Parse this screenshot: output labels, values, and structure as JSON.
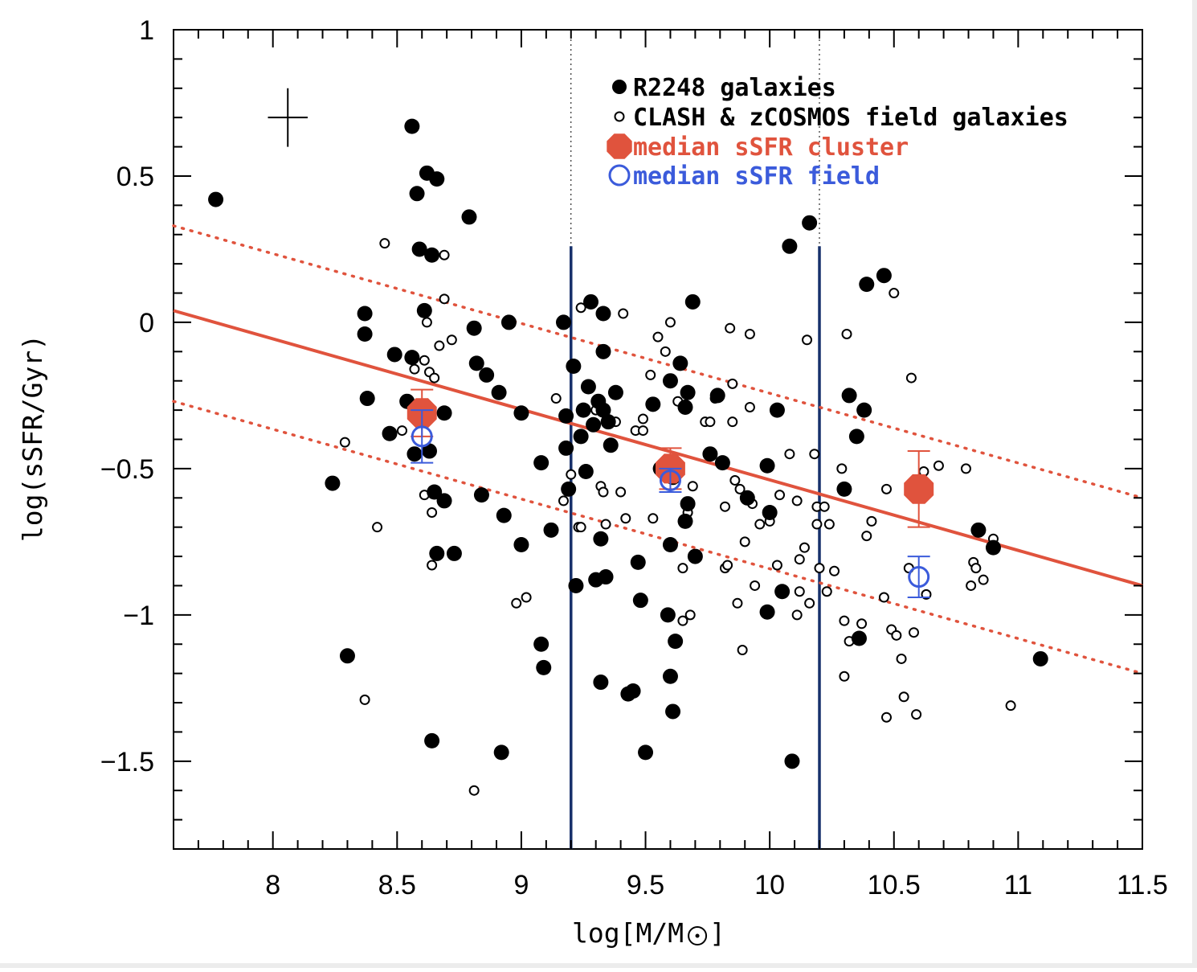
{
  "chart_data": {
    "type": "scatter",
    "title": "",
    "xlabel": "log[M/M",
    "xlabel_suffix": "]",
    "ylabel": "log(sSFR/Gyr)",
    "xlim": [
      7.6,
      11.5
    ],
    "ylim": [
      -1.8,
      1.0
    ],
    "x_ticks": [
      "8",
      "8.5",
      "9",
      "9.5",
      "10",
      "10.5",
      "11",
      "11.5"
    ],
    "x_tick_values": [
      8,
      8.5,
      9,
      9.5,
      10,
      10.5,
      11,
      11.5
    ],
    "y_ticks": [
      "1",
      "0.5",
      "0",
      "−0.5",
      "−1",
      "−1.5"
    ],
    "y_tick_values": [
      1,
      0.5,
      0,
      -0.5,
      -1,
      -1.5
    ],
    "legend_position": "top-center",
    "legend": [
      {
        "label": "R2248 galaxies",
        "marker": "filled-circle",
        "color": "#000000"
      },
      {
        "label": "CLASH & zCOSMOS field galaxies",
        "marker": "open-circle",
        "color": "#000000"
      },
      {
        "label": "median sSFR cluster",
        "marker": "filled-octagon",
        "color": "#e0533d"
      },
      {
        "label": "median sSFR field",
        "marker": "open-circle",
        "color": "#3b5bdb"
      }
    ],
    "colors": {
      "cluster": "#e0533d",
      "field": "#3b5bdb",
      "bin_lines": "#17306b",
      "points": "#000000"
    },
    "vertical_lines": {
      "solid": [
        9.2,
        10.2
      ],
      "solid_ymax": 0.26,
      "dotted": [
        9.2,
        10.2
      ]
    },
    "fit_line": {
      "x": [
        7.6,
        11.5
      ],
      "y": [
        0.04,
        -0.9
      ]
    },
    "dotted_lines": [
      {
        "x": [
          7.6,
          11.5
        ],
        "y": [
          0.33,
          -0.6
        ]
      },
      {
        "x": [
          7.6,
          11.5
        ],
        "y": [
          -0.27,
          -1.2
        ]
      }
    ],
    "error_cross": {
      "x": 8.06,
      "y": 0.7,
      "dx": 0.08,
      "dy": 0.1
    },
    "median_cluster": [
      {
        "x": 8.6,
        "y": -0.31,
        "err": 0.08
      },
      {
        "x": 9.6,
        "y": -0.5,
        "err": 0.07
      },
      {
        "x": 10.6,
        "y": -0.57,
        "err": 0.13
      }
    ],
    "median_field": [
      {
        "x": 8.6,
        "y": -0.39,
        "err": 0.09
      },
      {
        "x": 9.6,
        "y": -0.54,
        "err": 0.04
      },
      {
        "x": 10.6,
        "y": -0.87,
        "err": 0.07
      }
    ],
    "cluster_galaxies": [
      [
        7.77,
        0.42
      ],
      [
        8.24,
        -0.55
      ],
      [
        8.3,
        -1.14
      ],
      [
        8.37,
        0.03
      ],
      [
        8.37,
        -0.04
      ],
      [
        8.38,
        -0.26
      ],
      [
        8.47,
        -0.38
      ],
      [
        8.49,
        -0.11
      ],
      [
        8.54,
        -0.27
      ],
      [
        8.56,
        0.67
      ],
      [
        8.56,
        -0.12
      ],
      [
        8.57,
        -0.45
      ],
      [
        8.58,
        0.44
      ],
      [
        8.59,
        0.25
      ],
      [
        8.6,
        -0.33
      ],
      [
        8.61,
        0.04
      ],
      [
        8.62,
        0.51
      ],
      [
        8.63,
        -0.44
      ],
      [
        8.64,
        -1.43
      ],
      [
        8.64,
        0.23
      ],
      [
        8.65,
        -0.58
      ],
      [
        8.66,
        0.49
      ],
      [
        8.66,
        -0.79
      ],
      [
        8.69,
        -0.31
      ],
      [
        8.69,
        -0.61
      ],
      [
        8.73,
        -0.79
      ],
      [
        8.79,
        0.36
      ],
      [
        8.81,
        -0.02
      ],
      [
        8.82,
        -0.14
      ],
      [
        8.84,
        -0.59
      ],
      [
        8.86,
        -0.18
      ],
      [
        8.91,
        -0.24
      ],
      [
        8.92,
        -1.47
      ],
      [
        8.93,
        -0.66
      ],
      [
        8.95,
        0.0
      ],
      [
        9.0,
        -0.31
      ],
      [
        9.0,
        -0.76
      ],
      [
        9.08,
        -0.48
      ],
      [
        9.08,
        -1.1
      ],
      [
        9.09,
        -1.18
      ],
      [
        9.12,
        -0.71
      ],
      [
        9.17,
        0.0
      ],
      [
        9.18,
        -0.32
      ],
      [
        9.18,
        -0.43
      ],
      [
        9.19,
        -0.57
      ],
      [
        9.21,
        -0.15
      ],
      [
        9.22,
        -0.9
      ],
      [
        9.24,
        -0.39
      ],
      [
        9.25,
        -0.3
      ],
      [
        9.26,
        -0.51
      ],
      [
        9.27,
        -0.22
      ],
      [
        9.28,
        0.07
      ],
      [
        9.29,
        -0.35
      ],
      [
        9.3,
        -0.88
      ],
      [
        9.31,
        -0.27
      ],
      [
        9.32,
        -0.74
      ],
      [
        9.32,
        -1.23
      ],
      [
        9.33,
        -0.3
      ],
      [
        9.33,
        0.03
      ],
      [
        9.33,
        -0.1
      ],
      [
        9.34,
        -0.87
      ],
      [
        9.35,
        -0.34
      ],
      [
        9.36,
        -0.42
      ],
      [
        9.38,
        -0.24
      ],
      [
        9.43,
        -1.27
      ],
      [
        9.45,
        -1.26
      ],
      [
        9.47,
        -0.82
      ],
      [
        9.48,
        -0.95
      ],
      [
        9.5,
        -1.47
      ],
      [
        9.53,
        -0.28
      ],
      [
        9.56,
        -0.5
      ],
      [
        9.59,
        -1.0
      ],
      [
        9.6,
        -0.2
      ],
      [
        9.6,
        -0.76
      ],
      [
        9.6,
        -1.21
      ],
      [
        9.61,
        -0.53
      ],
      [
        9.61,
        -1.33
      ],
      [
        9.62,
        -1.09
      ],
      [
        9.64,
        -0.14
      ],
      [
        9.66,
        -0.29
      ],
      [
        9.66,
        -0.68
      ],
      [
        9.67,
        -0.24
      ],
      [
        9.67,
        -0.62
      ],
      [
        9.69,
        0.07
      ],
      [
        9.7,
        -0.8
      ],
      [
        9.76,
        -0.45
      ],
      [
        9.79,
        -0.25
      ],
      [
        9.81,
        -0.48
      ],
      [
        9.91,
        -0.6
      ],
      [
        9.99,
        -0.49
      ],
      [
        9.99,
        -0.99
      ],
      [
        10.0,
        -0.65
      ],
      [
        10.03,
        -0.3
      ],
      [
        10.05,
        -0.92
      ],
      [
        10.08,
        0.26
      ],
      [
        10.09,
        -1.5
      ],
      [
        10.16,
        0.34
      ],
      [
        10.3,
        -0.57
      ],
      [
        10.32,
        -0.25
      ],
      [
        10.35,
        -0.39
      ],
      [
        10.36,
        -1.08
      ],
      [
        10.38,
        -0.3
      ],
      [
        10.39,
        0.13
      ],
      [
        10.46,
        0.16
      ],
      [
        10.84,
        -0.71
      ],
      [
        10.9,
        -0.77
      ],
      [
        11.09,
        -1.15
      ]
    ],
    "field_galaxies": [
      [
        8.29,
        -0.41
      ],
      [
        8.37,
        -1.29
      ],
      [
        8.42,
        -0.7
      ],
      [
        8.45,
        0.27
      ],
      [
        8.52,
        -0.37
      ],
      [
        8.57,
        -0.16
      ],
      [
        8.61,
        -0.13
      ],
      [
        8.61,
        -0.59
      ],
      [
        8.62,
        0.0
      ],
      [
        8.63,
        -0.17
      ],
      [
        8.64,
        -0.65
      ],
      [
        8.64,
        -0.83
      ],
      [
        8.65,
        -0.19
      ],
      [
        8.67,
        -0.08
      ],
      [
        8.69,
        0.23
      ],
      [
        8.69,
        0.08
      ],
      [
        8.72,
        -0.06
      ],
      [
        8.81,
        -1.6
      ],
      [
        8.98,
        -0.96
      ],
      [
        9.02,
        -0.94
      ],
      [
        9.14,
        -0.26
      ],
      [
        9.17,
        -0.61
      ],
      [
        9.2,
        -0.52
      ],
      [
        9.23,
        -0.7
      ],
      [
        9.24,
        -0.7
      ],
      [
        9.24,
        0.05
      ],
      [
        9.3,
        -0.3
      ],
      [
        9.32,
        -0.56
      ],
      [
        9.33,
        -0.58
      ],
      [
        9.34,
        -0.69
      ],
      [
        9.38,
        -0.34
      ],
      [
        9.4,
        -0.58
      ],
      [
        9.41,
        0.03
      ],
      [
        9.42,
        -0.67
      ],
      [
        9.46,
        -0.37
      ],
      [
        9.49,
        -0.37
      ],
      [
        9.49,
        -0.33
      ],
      [
        9.52,
        -0.18
      ],
      [
        9.53,
        -0.67
      ],
      [
        9.55,
        -0.05
      ],
      [
        9.58,
        -0.1
      ],
      [
        9.6,
        0.0
      ],
      [
        9.63,
        -0.27
      ],
      [
        9.65,
        -0.84
      ],
      [
        9.65,
        -1.02
      ],
      [
        9.67,
        -0.65
      ],
      [
        9.68,
        -1.0
      ],
      [
        9.69,
        -0.56
      ],
      [
        9.74,
        -0.34
      ],
      [
        9.76,
        -0.34
      ],
      [
        9.78,
        -0.26
      ],
      [
        9.82,
        -0.63
      ],
      [
        9.82,
        -0.84
      ],
      [
        9.83,
        -0.83
      ],
      [
        9.84,
        -0.02
      ],
      [
        9.85,
        -0.21
      ],
      [
        9.85,
        -0.34
      ],
      [
        9.86,
        -0.54
      ],
      [
        9.87,
        -0.96
      ],
      [
        9.88,
        -0.57
      ],
      [
        9.89,
        -1.12
      ],
      [
        9.9,
        -0.75
      ],
      [
        9.92,
        -0.04
      ],
      [
        9.92,
        -0.29
      ],
      [
        9.93,
        -0.62
      ],
      [
        9.94,
        -0.9
      ],
      [
        9.96,
        -0.69
      ],
      [
        10.0,
        -0.68
      ],
      [
        10.03,
        -0.83
      ],
      [
        10.04,
        -0.59
      ],
      [
        10.08,
        -0.45
      ],
      [
        10.11,
        -0.61
      ],
      [
        10.11,
        -1.0
      ],
      [
        10.12,
        -0.81
      ],
      [
        10.12,
        -0.92
      ],
      [
        10.14,
        -0.77
      ],
      [
        10.15,
        -0.06
      ],
      [
        10.16,
        -0.96
      ],
      [
        10.18,
        -0.45
      ],
      [
        10.19,
        -0.63
      ],
      [
        10.19,
        -0.69
      ],
      [
        10.2,
        -0.84
      ],
      [
        10.22,
        -0.63
      ],
      [
        10.23,
        -0.92
      ],
      [
        10.24,
        -0.69
      ],
      [
        10.26,
        -0.85
      ],
      [
        10.29,
        -0.5
      ],
      [
        10.3,
        -1.21
      ],
      [
        10.31,
        -0.04
      ],
      [
        10.3,
        -1.02
      ],
      [
        10.32,
        -1.09
      ],
      [
        10.35,
        -1.08
      ],
      [
        10.37,
        -1.03
      ],
      [
        10.39,
        -0.73
      ],
      [
        10.41,
        -0.68
      ],
      [
        10.46,
        -0.94
      ],
      [
        10.47,
        -1.35
      ],
      [
        10.49,
        -1.05
      ],
      [
        10.5,
        0.1
      ],
      [
        10.51,
        -1.07
      ],
      [
        10.53,
        -1.15
      ],
      [
        10.54,
        -1.28
      ],
      [
        10.56,
        -0.84
      ],
      [
        10.57,
        -0.19
      ],
      [
        10.58,
        -1.06
      ],
      [
        10.59,
        -1.34
      ],
      [
        10.62,
        -0.51
      ],
      [
        10.63,
        -0.93
      ],
      [
        10.68,
        -0.49
      ],
      [
        10.81,
        -0.9
      ],
      [
        10.82,
        -0.82
      ],
      [
        10.83,
        -0.84
      ],
      [
        10.86,
        -0.88
      ],
      [
        10.9,
        -0.74
      ],
      [
        10.97,
        -1.31
      ],
      [
        10.79,
        -0.5
      ],
      [
        10.47,
        -0.57
      ]
    ]
  }
}
